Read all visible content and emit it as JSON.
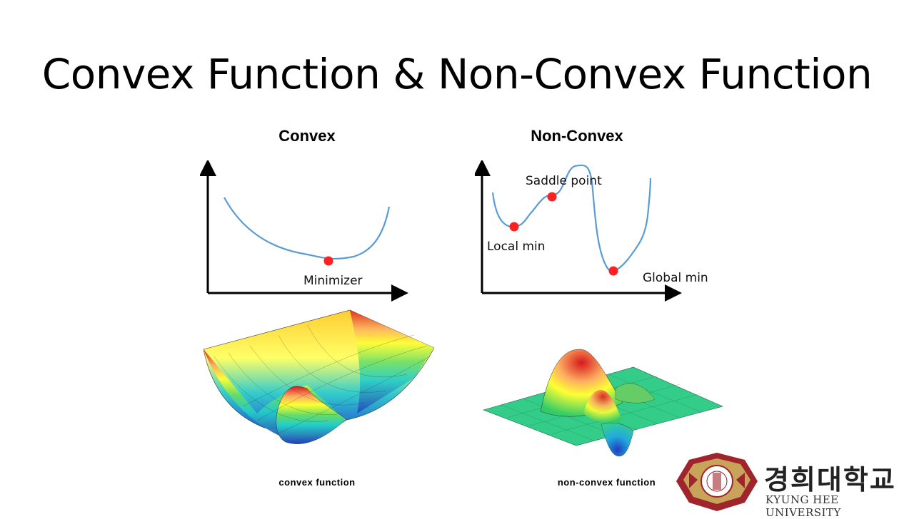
{
  "slide": {
    "title": "Convex Function & Non-Convex Function"
  },
  "convex": {
    "heading": "Convex",
    "minimizer_label": "Minimizer",
    "surface_caption": "convex function"
  },
  "nonconvex": {
    "heading": "Non-Convex",
    "saddle_label": "Saddle point",
    "local_min_label": "Local min",
    "global_min_label": "Global min",
    "surface_caption": "non-convex function"
  },
  "logo": {
    "korean": "경희대학교",
    "english": "KYUNG HEE UNIVERSITY"
  },
  "colors": {
    "curve": "#5b9bd5",
    "point": "#ff2020",
    "axis": "#000000",
    "logo_red": "#a0242b"
  }
}
